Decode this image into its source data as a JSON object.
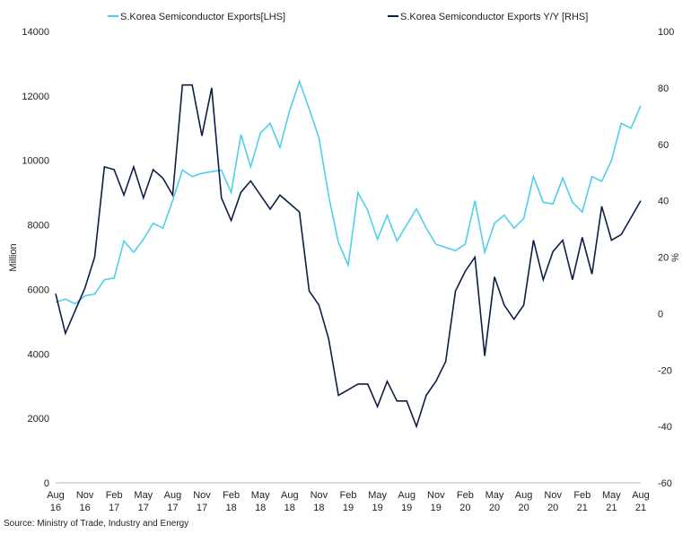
{
  "chart_data": {
    "type": "line",
    "categories": [
      "Aug 16",
      null,
      null,
      "Nov 16",
      null,
      null,
      "Feb 17",
      null,
      null,
      "May 17",
      null,
      null,
      "Aug 17",
      null,
      null,
      "Nov 17",
      null,
      null,
      "Feb 18",
      null,
      null,
      "May 18",
      null,
      null,
      "Aug 18",
      null,
      null,
      "Nov 18",
      null,
      null,
      "Feb 19",
      null,
      null,
      "May 19",
      null,
      null,
      "Aug 19",
      null,
      null,
      "Nov 19",
      null,
      null,
      "Feb 20",
      null,
      null,
      "May 20",
      null,
      null,
      "Aug 20",
      null,
      null,
      "Nov 20",
      null,
      null,
      "Feb 21",
      null,
      null,
      "May 21",
      null,
      null,
      "Aug 21"
    ],
    "series": [
      {
        "name": "S.Korea Semiconductor Exports[LHS]",
        "color": "#4fd0ea",
        "axis": "y",
        "values": [
          5600,
          5700,
          5550,
          5800,
          5850,
          6300,
          6350,
          7500,
          7150,
          7550,
          8050,
          7900,
          8750,
          9700,
          9500,
          9600,
          9650,
          9700,
          9000,
          10800,
          9800,
          10850,
          11150,
          10400,
          11550,
          12450,
          11600,
          10700,
          8900,
          7450,
          6750,
          9000,
          8450,
          7550,
          8300,
          7500,
          8000,
          8500,
          7900,
          7400,
          7300,
          7200,
          7400,
          8750,
          7150,
          8050,
          8300,
          7900,
          8200,
          9500,
          8700,
          8650,
          9450,
          8700,
          8400,
          9500,
          9350,
          10000,
          11150,
          11000,
          11700
        ]
      },
      {
        "name": "S.Korea Semiconductor Exports Y/Y [RHS]",
        "color": "#0d1f45",
        "axis": "y2",
        "values": [
          7,
          -7,
          1,
          9,
          20,
          52,
          51,
          42,
          52,
          41,
          51,
          48,
          42,
          81,
          81,
          63,
          80,
          41,
          33,
          43,
          47,
          42,
          37,
          42,
          39,
          36,
          8,
          3,
          -9,
          -29,
          -27,
          -25,
          -25,
          -33,
          -24,
          -31,
          -31,
          -40,
          -29,
          -24,
          -17,
          8,
          15,
          20,
          -15,
          13,
          3,
          -2,
          3,
          26,
          12,
          22,
          26,
          12,
          27,
          14,
          38,
          26,
          28,
          34,
          40
        ]
      }
    ],
    "ylabel": "Million",
    "y2label": "%",
    "ylim": [
      0,
      14000
    ],
    "yticks": [
      0,
      2000,
      4000,
      6000,
      8000,
      10000,
      12000,
      14000
    ],
    "y2lim": [
      -60,
      100
    ],
    "y2ticks": [
      -60,
      -40,
      -20,
      0,
      20,
      40,
      60,
      80,
      100
    ],
    "legend": "top",
    "source": "Source: Ministry of Trade, Industry and Energy"
  }
}
